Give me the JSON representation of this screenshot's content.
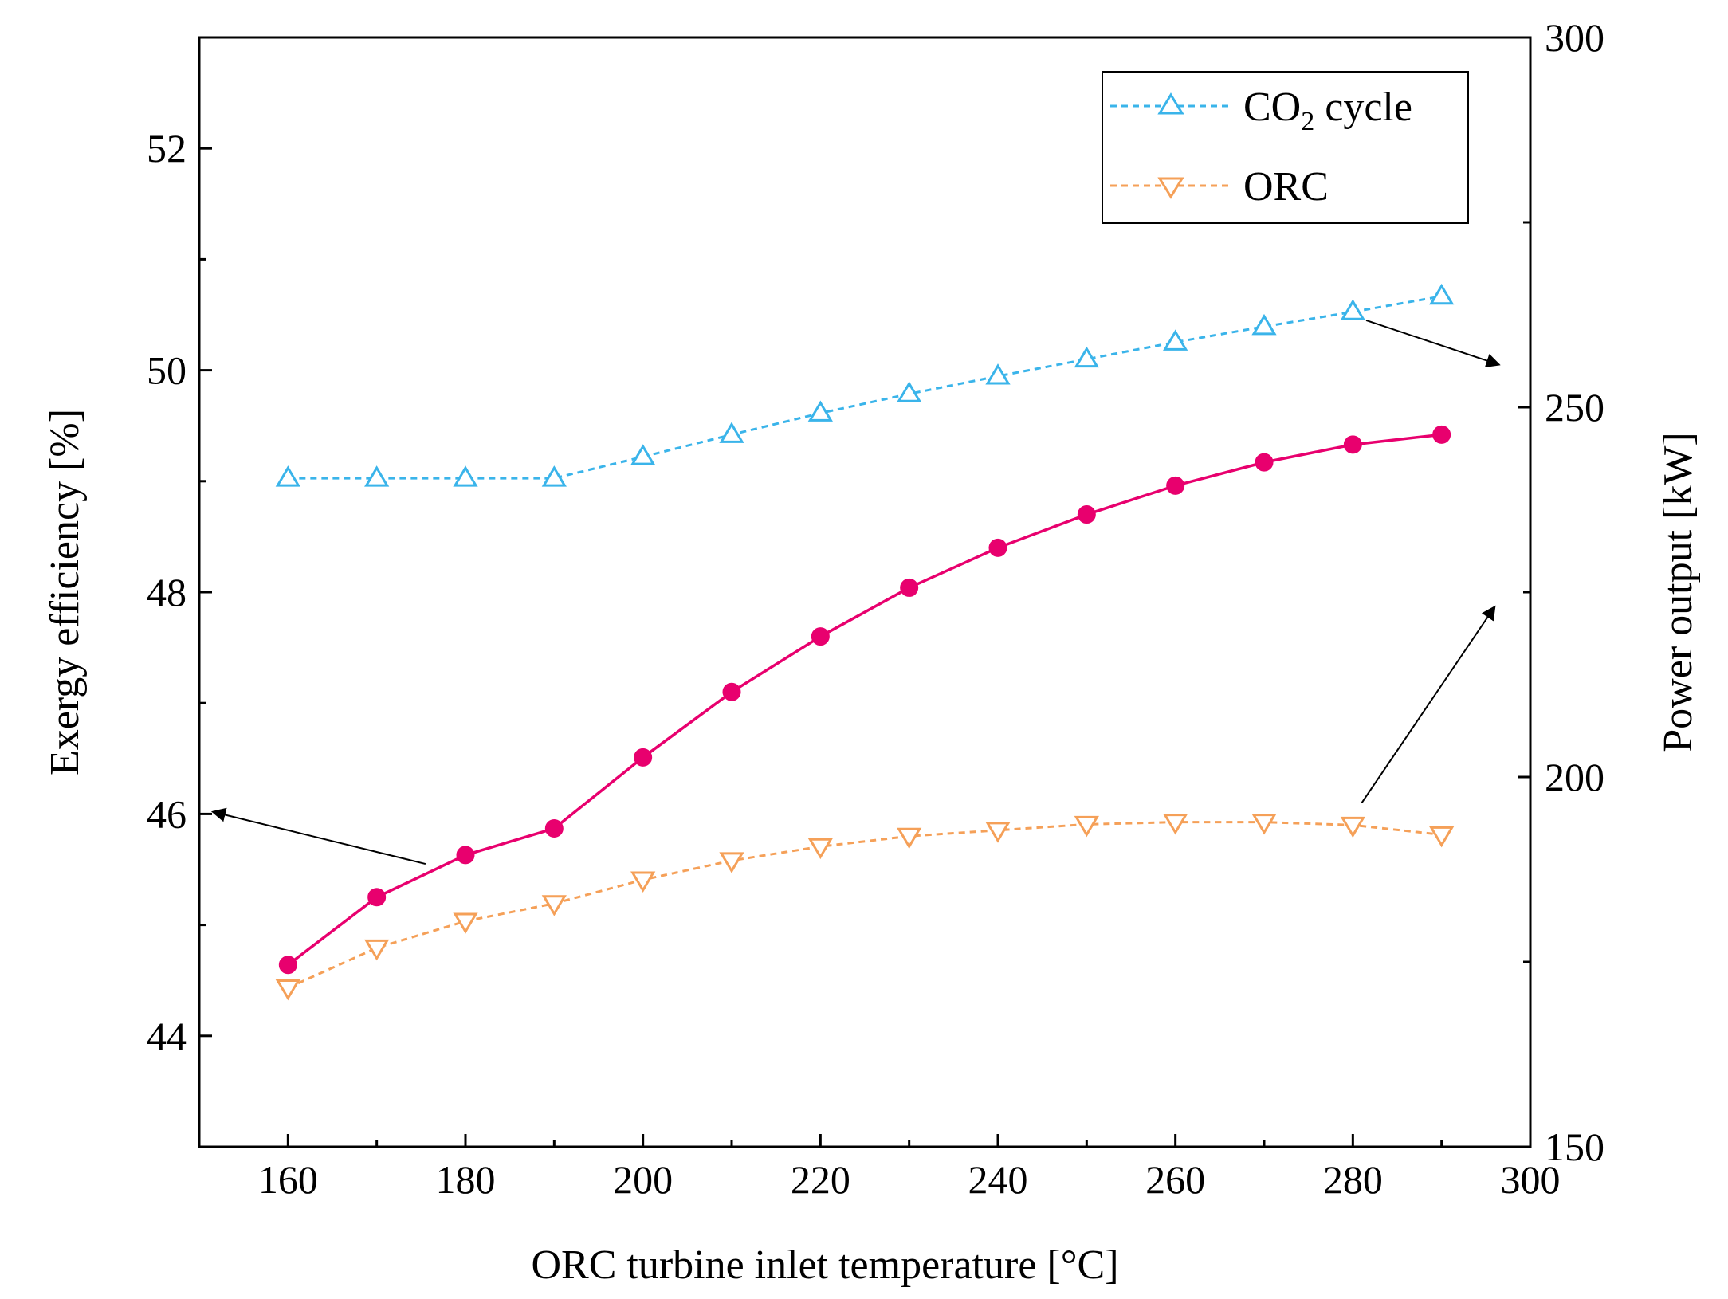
{
  "chart_data": {
    "type": "line",
    "title": "",
    "xlabel": "ORC turbine inlet temperature [°C]",
    "ylabel_left": "Exergy efficiency [%]",
    "ylabel_right": "Power output [kW]",
    "xlim": [
      150,
      300
    ],
    "ylim_left": [
      43,
      53
    ],
    "ylim_right": [
      150,
      300
    ],
    "x_ticks": [
      160,
      180,
      200,
      220,
      240,
      260,
      280,
      300
    ],
    "y_left_ticks": [
      44,
      46,
      48,
      50,
      52
    ],
    "y_right_ticks": [
      150,
      200,
      250,
      300
    ],
    "x": [
      160,
      170,
      180,
      190,
      200,
      210,
      220,
      230,
      240,
      250,
      260,
      270,
      280,
      290
    ],
    "series": [
      {
        "name": "Exergy efficiency",
        "axis": "left",
        "color": "#e8006e",
        "marker": "circle",
        "line": "solid",
        "values": [
          44.64,
          45.25,
          45.63,
          45.87,
          46.51,
          47.1,
          47.6,
          48.04,
          48.4,
          48.7,
          48.96,
          49.17,
          49.33,
          49.42
        ]
      },
      {
        "name": "CO2 cycle",
        "axis": "right",
        "color": "#3ab4ea",
        "marker": "triangle-up",
        "line": "dashed",
        "legend": true,
        "values": [
          240.4,
          240.4,
          240.4,
          240.4,
          243.3,
          246.3,
          249.2,
          251.8,
          254.2,
          256.5,
          258.8,
          260.9,
          262.9,
          265.0
        ]
      },
      {
        "name": "ORC",
        "axis": "right",
        "color": "#f5a058",
        "marker": "triangle-down",
        "line": "dashed",
        "legend": true,
        "values": [
          171.5,
          176.9,
          180.5,
          182.9,
          186.1,
          188.7,
          190.6,
          192.0,
          192.8,
          193.6,
          193.9,
          193.9,
          193.5,
          192.2
        ]
      }
    ],
    "legend": {
      "position": "top-right",
      "items": [
        {
          "label_main": "CO",
          "label_sub": "2",
          "label_rest": " cycle",
          "series": "CO2 cycle"
        },
        {
          "label_main": "ORC",
          "series": "ORC"
        }
      ]
    },
    "annotations": [
      {
        "type": "arrow",
        "from": [
          175.5,
          45.55
        ],
        "to": [
          151.5,
          46.02
        ],
        "meaning": "pink curve reads on left axis"
      },
      {
        "type": "arrow",
        "from": [
          281.5,
          50.45
        ],
        "to": [
          296.5,
          50.05
        ],
        "meaning": "CO2 cycle reads on right axis"
      },
      {
        "type": "arrow",
        "from": [
          281,
          46.1
        ],
        "to": [
          296,
          47.87
        ],
        "meaning": "ORC reads on right axis"
      }
    ]
  }
}
